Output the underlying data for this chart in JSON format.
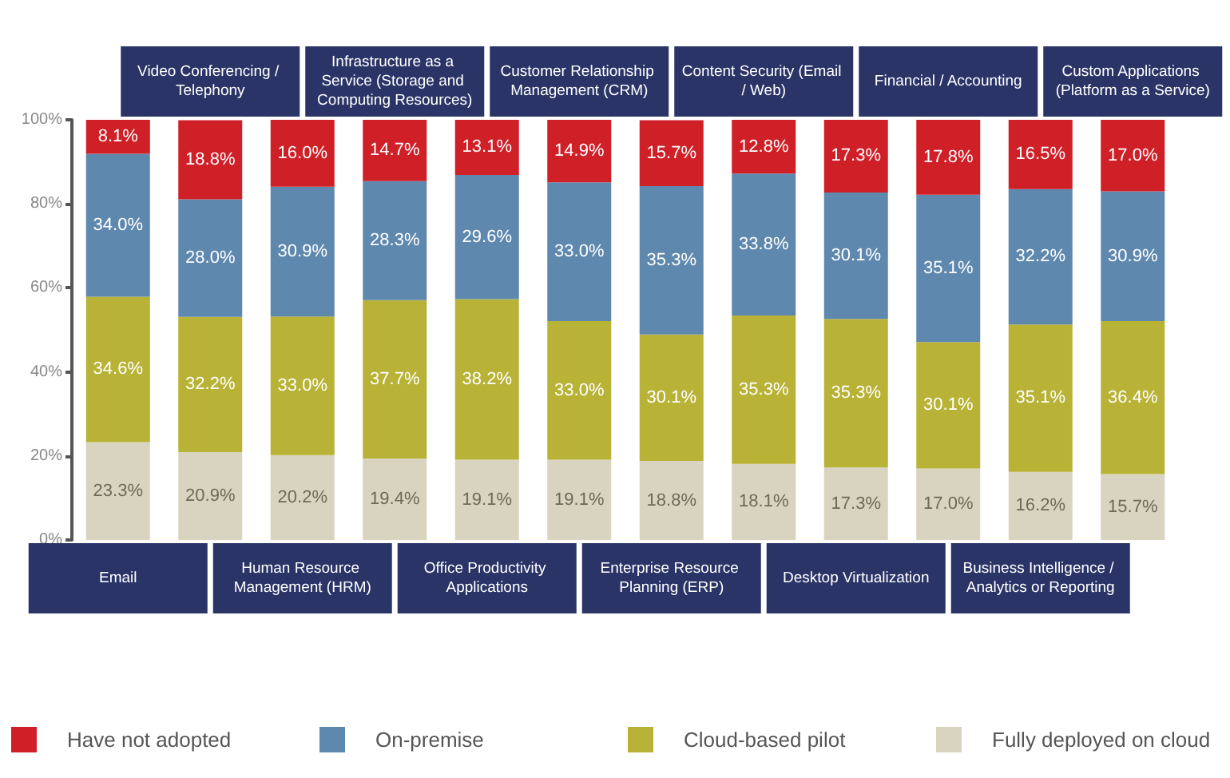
{
  "chart_data": {
    "type": "bar",
    "stacked": true,
    "categories": [
      "Email",
      "Video Conferencing / Telephony",
      "Human Resource Management (HRM)",
      "Infrastructure as a Service (Storage and Computing Resources)",
      "Office Productivity Applications",
      "Customer Relationship Management (CRM)",
      "Enterprise Resource Planning (ERP)",
      "Content Security (Email / Web)",
      "Desktop Virtualization",
      "Financial / Accounting",
      "Business Intelligence / Analytics or Reporting",
      "Custom Applications (Platform as a Service)"
    ],
    "series": [
      {
        "name": "Fully deployed on cloud",
        "color": "#d9d4c0",
        "values": [
          23.3,
          20.9,
          20.2,
          19.4,
          19.1,
          19.1,
          18.8,
          18.1,
          17.3,
          17.0,
          16.2,
          15.7
        ],
        "value_labels": [
          "23.3%",
          "20.9%",
          "20.2%",
          "19.4%",
          "19.1%",
          "19.1%",
          "18.8%",
          "18.1%",
          "17.3%",
          "17.0%",
          "16.2%",
          "15.7%"
        ]
      },
      {
        "name": "Cloud-based pilot",
        "color": "#b8b236",
        "values": [
          34.6,
          32.2,
          33.0,
          37.7,
          38.2,
          33.0,
          30.1,
          35.3,
          35.3,
          30.1,
          35.1,
          36.4
        ],
        "value_labels": [
          "34.6%",
          "32.2%",
          "33.0%",
          "37.7%",
          "38.2%",
          "33.0%",
          "30.1%",
          "35.3%",
          "35.3%",
          "30.1%",
          "35.1%",
          "36.4%"
        ]
      },
      {
        "name": "On-premise",
        "color": "#5f88ae",
        "values": [
          34.0,
          28.0,
          30.9,
          28.3,
          29.6,
          33.0,
          35.3,
          33.8,
          30.1,
          35.1,
          32.2,
          30.9
        ],
        "value_labels": [
          "34.0%",
          "28.0%",
          "30.9%",
          "28.3%",
          "29.6%",
          "33.0%",
          "35.3%",
          "33.8%",
          "30.1%",
          "35.1%",
          "32.2%",
          "30.9%"
        ]
      },
      {
        "name": "Have not adopted",
        "color": "#cf1f27",
        "values": [
          8.1,
          18.8,
          16.0,
          14.7,
          13.1,
          14.9,
          15.7,
          12.8,
          17.3,
          17.8,
          16.5,
          17.0
        ],
        "value_labels": [
          "8.1%",
          "18.8%",
          "16.0%",
          "14.7%",
          "13.1%",
          "14.9%",
          "15.7%",
          "12.8%",
          "17.3%",
          "17.8%",
          "16.5%",
          "17.0%"
        ]
      }
    ],
    "ylim": [
      0,
      100
    ],
    "yticks": [
      {
        "value": 0,
        "label": "0%"
      },
      {
        "value": 20,
        "label": "20%"
      },
      {
        "value": 40,
        "label": "40%"
      },
      {
        "value": 60,
        "label": "60%"
      },
      {
        "value": 80,
        "label": "80%"
      },
      {
        "value": 100,
        "label": "100%"
      }
    ],
    "legend": "bottom"
  }
}
